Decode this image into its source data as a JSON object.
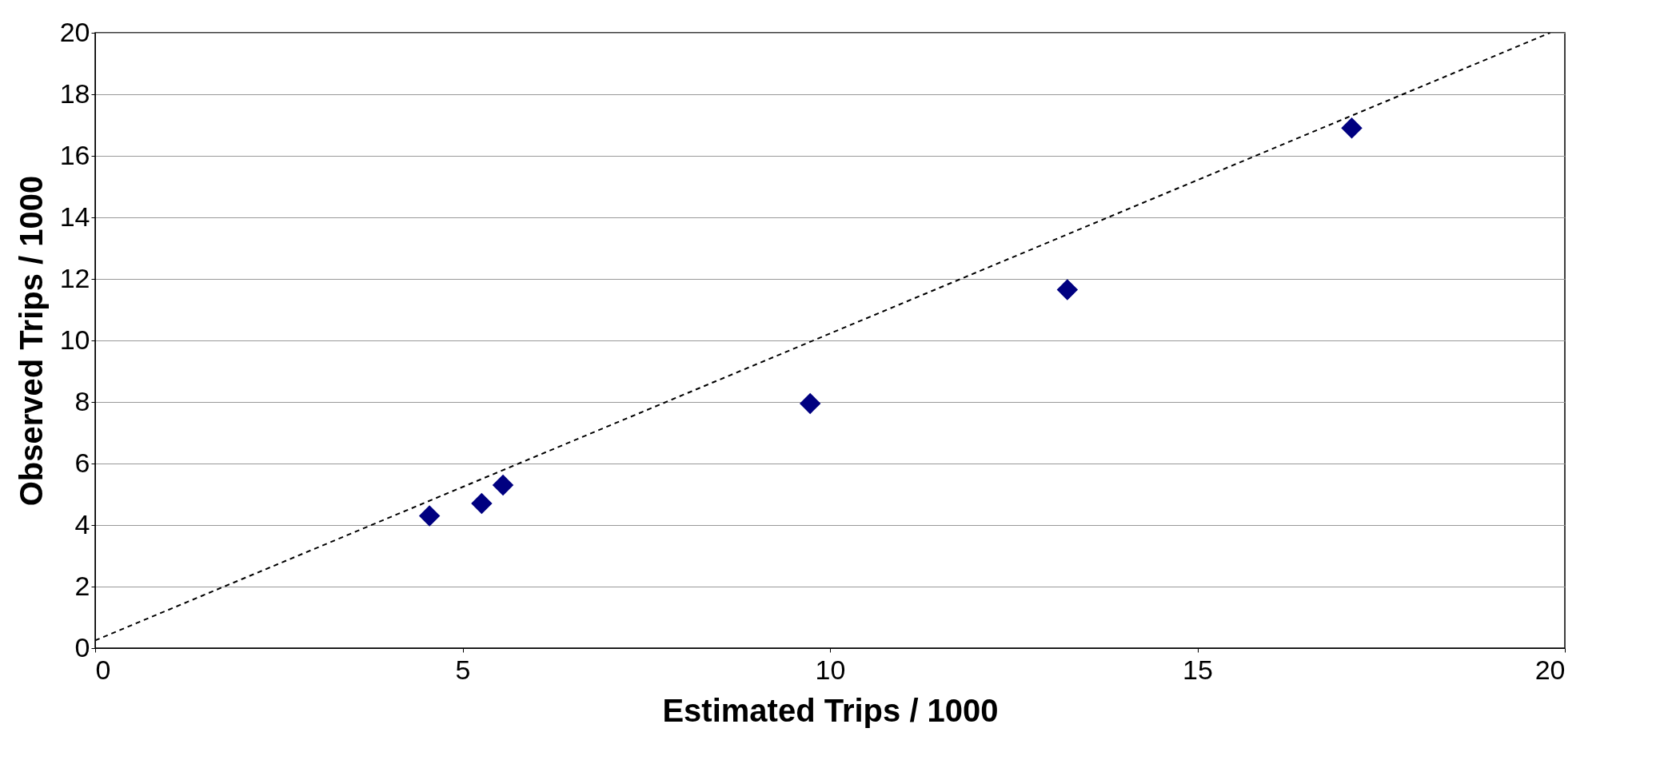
{
  "chart_data": {
    "type": "scatter",
    "xlabel": "Estimated Trips / 1000",
    "ylabel": "Observed Trips / 1000",
    "xlim": [
      0,
      20
    ],
    "ylim": [
      0,
      20
    ],
    "xticks": [
      0,
      5,
      10,
      15,
      20
    ],
    "yticks": [
      0,
      2,
      4,
      6,
      8,
      10,
      12,
      14,
      16,
      18,
      20
    ],
    "grid": "y",
    "series": [
      {
        "color": "#000080",
        "marker": "diamond",
        "x": [
          4.55,
          5.26,
          5.55,
          9.73,
          13.23,
          17.1
        ],
        "values": [
          4.3,
          4.7,
          5.3,
          7.95,
          11.65,
          16.9
        ]
      },
      {
        "type": "line",
        "color": "#000000",
        "line_style": "dashed",
        "marker": "none",
        "x": [
          0,
          19.8
        ],
        "values": [
          0.25,
          20
        ]
      }
    ]
  }
}
